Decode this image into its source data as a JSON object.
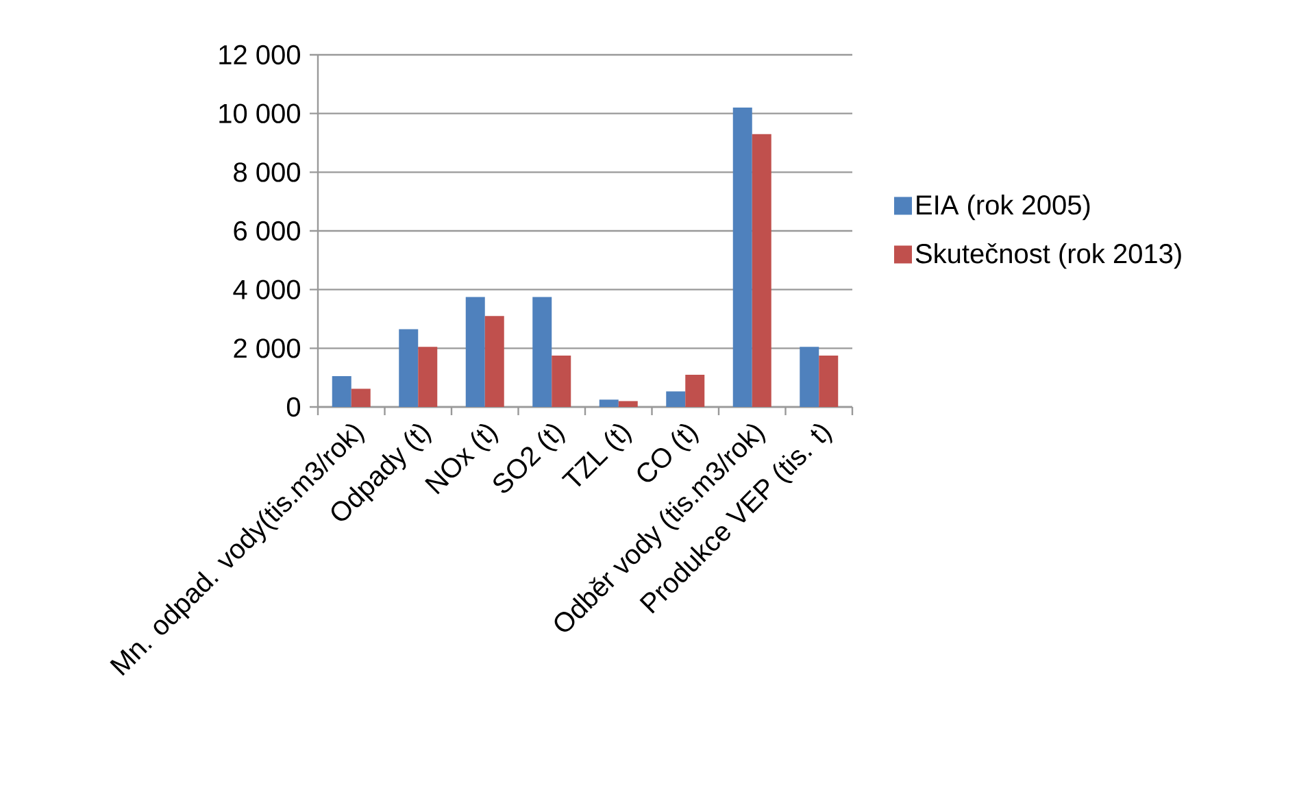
{
  "chart_data": {
    "type": "bar",
    "categories": [
      "Mn. odpad. vody(tis.m3/rok)",
      "Odpady (t)",
      "NOx (t)",
      "SO2 (t)",
      "TZL (t)",
      "CO (t)",
      "Odběr vody (tis.m3/rok)",
      "Produkce VEP (tis. t)"
    ],
    "series": [
      {
        "name": "EIA (rok 2005)",
        "color": "#4f81bd",
        "values": [
          1050,
          2650,
          3750,
          3750,
          250,
          530,
          10200,
          2050
        ]
      },
      {
        "name": "Skutečnost (rok 2013)",
        "color": "#c0504d",
        "values": [
          620,
          2050,
          3100,
          1750,
          200,
          1100,
          9300,
          1750
        ]
      }
    ],
    "ylim": [
      0,
      12000
    ],
    "yticks": [
      0,
      {
        "value": 2000,
        "label": "2 000"
      },
      {
        "value": 4000,
        "label": "4 000"
      },
      {
        "value": 6000,
        "label": "6 000"
      },
      {
        "value": 8000,
        "label": "8 000"
      },
      {
        "value": 10000,
        "label": "10 000"
      },
      {
        "value": 12000,
        "label": "12 000"
      }
    ],
    "grid": "y",
    "legend": "right"
  }
}
